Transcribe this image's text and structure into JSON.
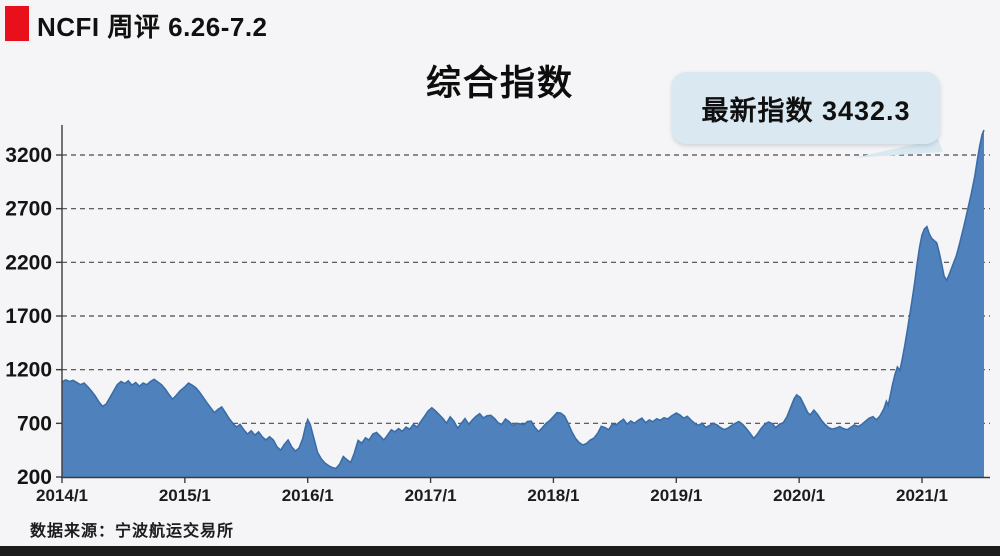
{
  "header": {
    "title": "NCFI 周评 6.26-7.2",
    "accent_color": "#e8101a"
  },
  "chart": {
    "title": "综合指数",
    "callout": {
      "label": "最新指数 3432.3",
      "bg": "#d9e8f1"
    },
    "source": "数据来源：宁波航运交易所"
  },
  "chart_data": {
    "type": "area",
    "title": "综合指数",
    "series_name": "NCFI综合指数",
    "latest_value": 3432.3,
    "latest_label": "最新指数 3432.3",
    "x_ticks": [
      "2014/1",
      "2015/1",
      "2016/1",
      "2017/1",
      "2018/1",
      "2019/1",
      "2020/1",
      "2021/1"
    ],
    "x_tick_years": [
      2014,
      2015,
      2016,
      2017,
      2018,
      2019,
      2020,
      2021
    ],
    "y_ticks": [
      200,
      700,
      1200,
      1700,
      2200,
      2700,
      3200
    ],
    "grid_y_values": [
      700,
      1200,
      1700,
      2200,
      2700,
      3200
    ],
    "ylim": [
      200,
      3500
    ],
    "xlim": [
      2014,
      2021.55
    ],
    "grid": "dashed-horizontal",
    "legend": "none",
    "area_color": "#4f81bd",
    "line_color": "#3a6da8",
    "grid_color": "#4a4a4a",
    "axis_color": "#3c3c3c",
    "points": [
      [
        2014.0,
        1085
      ],
      [
        2014.03,
        1105
      ],
      [
        2014.06,
        1090
      ],
      [
        2014.09,
        1100
      ],
      [
        2014.12,
        1080
      ],
      [
        2014.15,
        1060
      ],
      [
        2014.18,
        1075
      ],
      [
        2014.21,
        1040
      ],
      [
        2014.24,
        1000
      ],
      [
        2014.27,
        955
      ],
      [
        2014.3,
        900
      ],
      [
        2014.33,
        858
      ],
      [
        2014.36,
        880
      ],
      [
        2014.39,
        940
      ],
      [
        2014.42,
        1000
      ],
      [
        2014.45,
        1060
      ],
      [
        2014.48,
        1090
      ],
      [
        2014.51,
        1070
      ],
      [
        2014.54,
        1095
      ],
      [
        2014.57,
        1055
      ],
      [
        2014.6,
        1080
      ],
      [
        2014.63,
        1045
      ],
      [
        2014.66,
        1075
      ],
      [
        2014.69,
        1060
      ],
      [
        2014.72,
        1090
      ],
      [
        2014.75,
        1110
      ],
      [
        2014.78,
        1085
      ],
      [
        2014.81,
        1060
      ],
      [
        2014.84,
        1020
      ],
      [
        2014.87,
        970
      ],
      [
        2014.9,
        925
      ],
      [
        2014.93,
        960
      ],
      [
        2014.96,
        1000
      ],
      [
        2015.0,
        1040
      ],
      [
        2015.03,
        1075
      ],
      [
        2015.06,
        1055
      ],
      [
        2015.09,
        1030
      ],
      [
        2015.12,
        990
      ],
      [
        2015.15,
        940
      ],
      [
        2015.18,
        890
      ],
      [
        2015.21,
        845
      ],
      [
        2015.24,
        800
      ],
      [
        2015.27,
        830
      ],
      [
        2015.3,
        852
      ],
      [
        2015.33,
        800
      ],
      [
        2015.36,
        745
      ],
      [
        2015.39,
        700
      ],
      [
        2015.42,
        665
      ],
      [
        2015.45,
        690
      ],
      [
        2015.48,
        640
      ],
      [
        2015.51,
        600
      ],
      [
        2015.54,
        630
      ],
      [
        2015.57,
        590
      ],
      [
        2015.6,
        620
      ],
      [
        2015.63,
        575
      ],
      [
        2015.66,
        545
      ],
      [
        2015.69,
        575
      ],
      [
        2015.72,
        545
      ],
      [
        2015.75,
        480
      ],
      [
        2015.78,
        450
      ],
      [
        2015.81,
        505
      ],
      [
        2015.84,
        545
      ],
      [
        2015.87,
        480
      ],
      [
        2015.9,
        440
      ],
      [
        2015.93,
        470
      ],
      [
        2015.96,
        560
      ],
      [
        2015.98,
        660
      ],
      [
        2016.0,
        735
      ],
      [
        2016.02,
        690
      ],
      [
        2016.05,
        560
      ],
      [
        2016.08,
        430
      ],
      [
        2016.11,
        370
      ],
      [
        2016.14,
        330
      ],
      [
        2016.17,
        305
      ],
      [
        2016.2,
        288
      ],
      [
        2016.23,
        280
      ],
      [
        2016.26,
        320
      ],
      [
        2016.29,
        390
      ],
      [
        2016.32,
        360
      ],
      [
        2016.35,
        335
      ],
      [
        2016.38,
        425
      ],
      [
        2016.41,
        540
      ],
      [
        2016.44,
        515
      ],
      [
        2016.47,
        565
      ],
      [
        2016.5,
        545
      ],
      [
        2016.53,
        600
      ],
      [
        2016.56,
        615
      ],
      [
        2016.59,
        580
      ],
      [
        2016.62,
        545
      ],
      [
        2016.65,
        590
      ],
      [
        2016.68,
        640
      ],
      [
        2016.71,
        620
      ],
      [
        2016.74,
        650
      ],
      [
        2016.77,
        625
      ],
      [
        2016.8,
        665
      ],
      [
        2016.83,
        645
      ],
      [
        2016.86,
        690
      ],
      [
        2016.89,
        665
      ],
      [
        2016.92,
        715
      ],
      [
        2016.95,
        765
      ],
      [
        2016.98,
        815
      ],
      [
        2017.01,
        845
      ],
      [
        2017.04,
        815
      ],
      [
        2017.07,
        780
      ],
      [
        2017.1,
        745
      ],
      [
        2017.13,
        700
      ],
      [
        2017.16,
        760
      ],
      [
        2017.19,
        720
      ],
      [
        2017.22,
        655
      ],
      [
        2017.25,
        700
      ],
      [
        2017.28,
        745
      ],
      [
        2017.31,
        690
      ],
      [
        2017.34,
        730
      ],
      [
        2017.37,
        765
      ],
      [
        2017.4,
        790
      ],
      [
        2017.43,
        750
      ],
      [
        2017.46,
        770
      ],
      [
        2017.49,
        775
      ],
      [
        2017.52,
        745
      ],
      [
        2017.55,
        705
      ],
      [
        2017.58,
        690
      ],
      [
        2017.61,
        740
      ],
      [
        2017.64,
        715
      ],
      [
        2017.67,
        680
      ],
      [
        2017.7,
        700
      ],
      [
        2017.73,
        695
      ],
      [
        2017.76,
        685
      ],
      [
        2017.79,
        718
      ],
      [
        2017.82,
        720
      ],
      [
        2017.85,
        660
      ],
      [
        2017.88,
        622
      ],
      [
        2017.91,
        660
      ],
      [
        2017.94,
        700
      ],
      [
        2017.97,
        725
      ],
      [
        2018.0,
        762
      ],
      [
        2018.03,
        800
      ],
      [
        2018.06,
        795
      ],
      [
        2018.09,
        768
      ],
      [
        2018.12,
        700
      ],
      [
        2018.15,
        620
      ],
      [
        2018.18,
        560
      ],
      [
        2018.21,
        520
      ],
      [
        2018.24,
        498
      ],
      [
        2018.27,
        512
      ],
      [
        2018.3,
        545
      ],
      [
        2018.33,
        562
      ],
      [
        2018.36,
        608
      ],
      [
        2018.39,
        672
      ],
      [
        2018.42,
        660
      ],
      [
        2018.45,
        640
      ],
      [
        2018.48,
        695
      ],
      [
        2018.51,
        685
      ],
      [
        2018.54,
        712
      ],
      [
        2018.57,
        738
      ],
      [
        2018.6,
        692
      ],
      [
        2018.63,
        722
      ],
      [
        2018.66,
        700
      ],
      [
        2018.69,
        728
      ],
      [
        2018.72,
        748
      ],
      [
        2018.75,
        705
      ],
      [
        2018.78,
        732
      ],
      [
        2018.81,
        715
      ],
      [
        2018.84,
        742
      ],
      [
        2018.87,
        728
      ],
      [
        2018.9,
        752
      ],
      [
        2018.93,
        740
      ],
      [
        2018.96,
        768
      ],
      [
        2019.0,
        795
      ],
      [
        2019.03,
        778
      ],
      [
        2019.06,
        748
      ],
      [
        2019.09,
        765
      ],
      [
        2019.12,
        730
      ],
      [
        2019.15,
        700
      ],
      [
        2019.18,
        682
      ],
      [
        2019.21,
        700
      ],
      [
        2019.24,
        662
      ],
      [
        2019.27,
        680
      ],
      [
        2019.3,
        700
      ],
      [
        2019.33,
        686
      ],
      [
        2019.36,
        660
      ],
      [
        2019.39,
        642
      ],
      [
        2019.42,
        656
      ],
      [
        2019.45,
        680
      ],
      [
        2019.48,
        700
      ],
      [
        2019.51,
        716
      ],
      [
        2019.54,
        690
      ],
      [
        2019.57,
        652
      ],
      [
        2019.6,
        608
      ],
      [
        2019.63,
        560
      ],
      [
        2019.66,
        600
      ],
      [
        2019.69,
        652
      ],
      [
        2019.72,
        690
      ],
      [
        2019.75,
        712
      ],
      [
        2019.78,
        698
      ],
      [
        2019.81,
        660
      ],
      [
        2019.84,
        692
      ],
      [
        2019.87,
        705
      ],
      [
        2019.9,
        760
      ],
      [
        2019.93,
        845
      ],
      [
        2019.96,
        930
      ],
      [
        2019.98,
        965
      ],
      [
        2020.01,
        940
      ],
      [
        2020.04,
        870
      ],
      [
        2020.07,
        800
      ],
      [
        2020.09,
        778
      ],
      [
        2020.12,
        822
      ],
      [
        2020.15,
        782
      ],
      [
        2020.18,
        730
      ],
      [
        2020.21,
        690
      ],
      [
        2020.24,
        660
      ],
      [
        2020.27,
        645
      ],
      [
        2020.3,
        655
      ],
      [
        2020.33,
        670
      ],
      [
        2020.36,
        650
      ],
      [
        2020.39,
        640
      ],
      [
        2020.42,
        662
      ],
      [
        2020.45,
        685
      ],
      [
        2020.48,
        670
      ],
      [
        2020.51,
        690
      ],
      [
        2020.54,
        720
      ],
      [
        2020.57,
        748
      ],
      [
        2020.6,
        762
      ],
      [
        2020.63,
        732
      ],
      [
        2020.66,
        772
      ],
      [
        2020.69,
        835
      ],
      [
        2020.71,
        905
      ],
      [
        2020.725,
        868
      ],
      [
        2020.74,
        950
      ],
      [
        2020.76,
        1060
      ],
      [
        2020.78,
        1155
      ],
      [
        2020.8,
        1225
      ],
      [
        2020.82,
        1192
      ],
      [
        2020.84,
        1300
      ],
      [
        2020.86,
        1425
      ],
      [
        2020.88,
        1565
      ],
      [
        2020.9,
        1705
      ],
      [
        2020.92,
        1855
      ],
      [
        2020.94,
        2005
      ],
      [
        2020.96,
        2185
      ],
      [
        2020.98,
        2335
      ],
      [
        2021.0,
        2455
      ],
      [
        2021.02,
        2512
      ],
      [
        2021.04,
        2532
      ],
      [
        2021.06,
        2462
      ],
      [
        2021.08,
        2422
      ],
      [
        2021.1,
        2402
      ],
      [
        2021.12,
        2382
      ],
      [
        2021.14,
        2292
      ],
      [
        2021.16,
        2182
      ],
      [
        2021.18,
        2072
      ],
      [
        2021.2,
        2032
      ],
      [
        2021.22,
        2082
      ],
      [
        2021.25,
        2172
      ],
      [
        2021.28,
        2262
      ],
      [
        2021.31,
        2392
      ],
      [
        2021.34,
        2532
      ],
      [
        2021.37,
        2682
      ],
      [
        2021.4,
        2832
      ],
      [
        2021.43,
        3002
      ],
      [
        2021.45,
        3152
      ],
      [
        2021.47,
        3282
      ],
      [
        2021.49,
        3392
      ],
      [
        2021.505,
        3432.3
      ]
    ]
  }
}
